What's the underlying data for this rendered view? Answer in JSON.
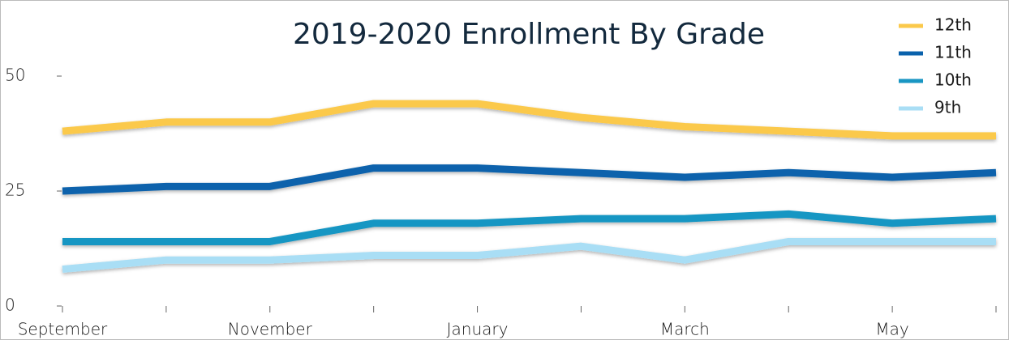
{
  "chart_data": {
    "type": "line",
    "title": "2019-2020 Enrollment By Grade",
    "categories": [
      "September",
      null,
      "November",
      null,
      "January",
      null,
      "March",
      null,
      "May",
      null
    ],
    "series": [
      {
        "name": "12th",
        "color": "#fbc94b",
        "values": [
          38,
          40,
          40,
          44,
          44,
          41,
          39,
          38,
          37,
          37
        ]
      },
      {
        "name": "11th",
        "color": "#0a62ac",
        "values": [
          25,
          26,
          26,
          30,
          30,
          29,
          28,
          29,
          28,
          29
        ]
      },
      {
        "name": "10th",
        "color": "#1996c3",
        "values": [
          14,
          14,
          14,
          18,
          18,
          19,
          19,
          20,
          18,
          19
        ]
      },
      {
        "name": "9th",
        "color": "#a9def5",
        "values": [
          8,
          10,
          10,
          11,
          11,
          13,
          10,
          14,
          14,
          14
        ]
      }
    ],
    "ylim": [
      0,
      50
    ],
    "yticks": [
      0,
      25,
      50
    ],
    "grid": false,
    "legend": "top-right"
  }
}
